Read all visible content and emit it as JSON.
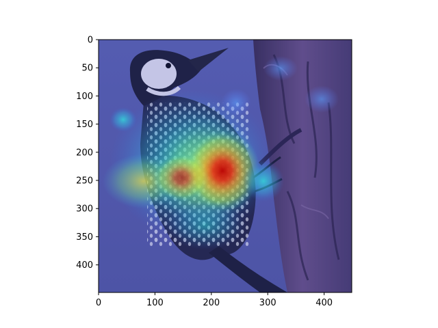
{
  "image": {
    "subject": "woodpecker-on-tree-trunk",
    "overlay": "attention-heatmap",
    "colormap": "jet",
    "colors": {
      "background_blue": "#5a5fa8",
      "trunk_dark": "#3b2f52",
      "bird_black": "#1a1a2e",
      "bird_white": "#e8e6f0",
      "heat_cyan": "#4fe0e0",
      "heat_yellow": "#e8e040",
      "heat_red": "#d81818"
    }
  },
  "axes": {
    "x_ticks": [
      0,
      100,
      200,
      300,
      400
    ],
    "y_ticks": [
      0,
      50,
      100,
      150,
      200,
      250,
      300,
      350,
      400
    ],
    "x_range": [
      0,
      449
    ],
    "y_range": [
      449,
      0
    ]
  }
}
